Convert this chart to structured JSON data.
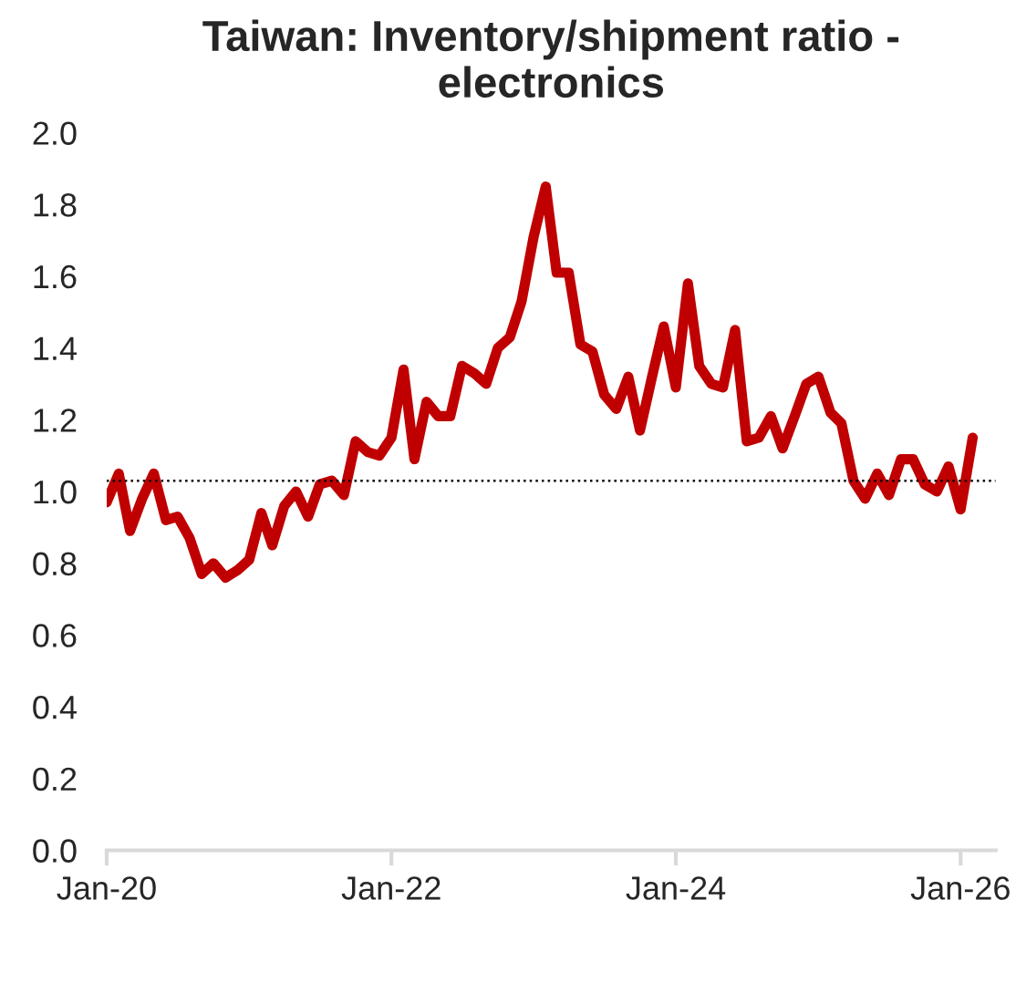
{
  "chart_data": {
    "type": "line",
    "title": "Taiwan: Inventory/shipment ratio -\nelectronics",
    "x": [
      "2020-01",
      "2020-02",
      "2020-03",
      "2020-04",
      "2020-05",
      "2020-06",
      "2020-07",
      "2020-08",
      "2020-09",
      "2020-10",
      "2020-11",
      "2020-12",
      "2021-01",
      "2021-02",
      "2021-03",
      "2021-04",
      "2021-05",
      "2021-06",
      "2021-07",
      "2021-08",
      "2021-09",
      "2021-10",
      "2021-11",
      "2021-12",
      "2022-01",
      "2022-02",
      "2022-03",
      "2022-04",
      "2022-05",
      "2022-06",
      "2022-07",
      "2022-08",
      "2022-09",
      "2022-10",
      "2022-11",
      "2022-12",
      "2023-01",
      "2023-02",
      "2023-03",
      "2023-04",
      "2023-05",
      "2023-06",
      "2023-07",
      "2023-08",
      "2023-09",
      "2023-10",
      "2023-11",
      "2023-12",
      "2024-01",
      "2024-02",
      "2024-03",
      "2024-04",
      "2024-05",
      "2024-06",
      "2024-07",
      "2024-08",
      "2024-09",
      "2024-10",
      "2024-11",
      "2024-12",
      "2025-01",
      "2025-02",
      "2025-03",
      "2025-04",
      "2025-05",
      "2025-06",
      "2025-07",
      "2025-08",
      "2025-09",
      "2025-10",
      "2025-11",
      "2025-12",
      "2026-01",
      "2026-02"
    ],
    "series": [
      {
        "color": "#c00000",
        "values": [
          0.97,
          1.05,
          0.89,
          0.98,
          1.05,
          0.92,
          0.93,
          0.87,
          0.77,
          0.8,
          0.76,
          0.78,
          0.81,
          0.94,
          0.85,
          0.96,
          1.0,
          0.93,
          1.02,
          1.03,
          0.99,
          1.14,
          1.11,
          1.1,
          1.15,
          1.34,
          1.09,
          1.25,
          1.21,
          1.21,
          1.35,
          1.33,
          1.3,
          1.4,
          1.43,
          1.53,
          1.71,
          1.85,
          1.61,
          1.61,
          1.41,
          1.39,
          1.27,
          1.23,
          1.32,
          1.17,
          1.32,
          1.46,
          1.29,
          1.58,
          1.35,
          1.3,
          1.29,
          1.45,
          1.14,
          1.15,
          1.21,
          1.12,
          1.21,
          1.3,
          1.32,
          1.22,
          1.19,
          1.03,
          0.98,
          1.05,
          0.99,
          1.09,
          1.09,
          1.02,
          1.0,
          1.07,
          0.95,
          1.15
        ]
      }
    ],
    "xlim": [
      "2020-01",
      "2026-04"
    ],
    "xticks": [
      {
        "value": "2020-01",
        "label": "Jan-20"
      },
      {
        "value": "2022-01",
        "label": "Jan-22"
      },
      {
        "value": "2024-01",
        "label": "Jan-24"
      },
      {
        "value": "2026-01",
        "label": "Jan-26"
      }
    ],
    "ylim": [
      0,
      2
    ],
    "yticks": [
      {
        "value": 0,
        "label": "0.0"
      },
      {
        "value": 0.2,
        "label": "0.2"
      },
      {
        "value": 0.4,
        "label": "0.4"
      },
      {
        "value": 0.6,
        "label": "0.6"
      },
      {
        "value": 0.8,
        "label": "0.8"
      },
      {
        "value": 1,
        "label": "1.0"
      },
      {
        "value": 1.2,
        "label": "1.2"
      },
      {
        "value": 1.4,
        "label": "1.4"
      },
      {
        "value": 1.6,
        "label": "1.6"
      },
      {
        "value": 1.8,
        "label": "1.8"
      },
      {
        "value": 2,
        "label": "2.0"
      }
    ],
    "ref_lines": [
      {
        "axis": "y",
        "value": 1.03,
        "label": null,
        "color": "#000000",
        "line_style": "dotted"
      }
    ],
    "grid": false,
    "legend": false,
    "marker": "none",
    "line_style": "solid"
  }
}
